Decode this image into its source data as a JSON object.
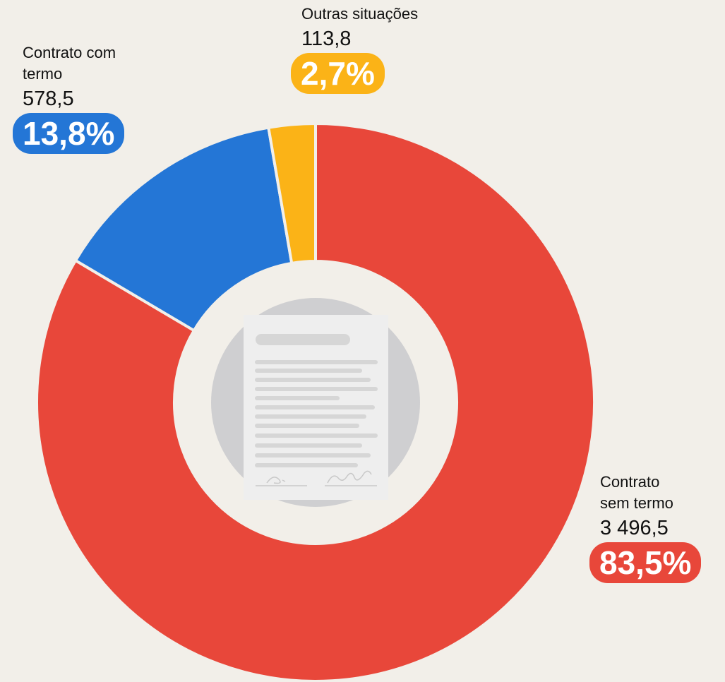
{
  "chart_data": {
    "type": "donut",
    "categories": [
      "Contrato sem termo",
      "Contrato com termo",
      "Outras situações"
    ],
    "values": [
      83.5,
      13.8,
      2.7
    ],
    "value_labels": [
      "83,5%",
      "13,8%",
      "2,7%"
    ],
    "amounts": [
      3496.5,
      578.5,
      113.8
    ],
    "amount_labels": [
      "3 496,5",
      "578,5",
      "113,8"
    ],
    "colors": [
      "#e8473a",
      "#2476d6",
      "#fbb317"
    ]
  }
}
